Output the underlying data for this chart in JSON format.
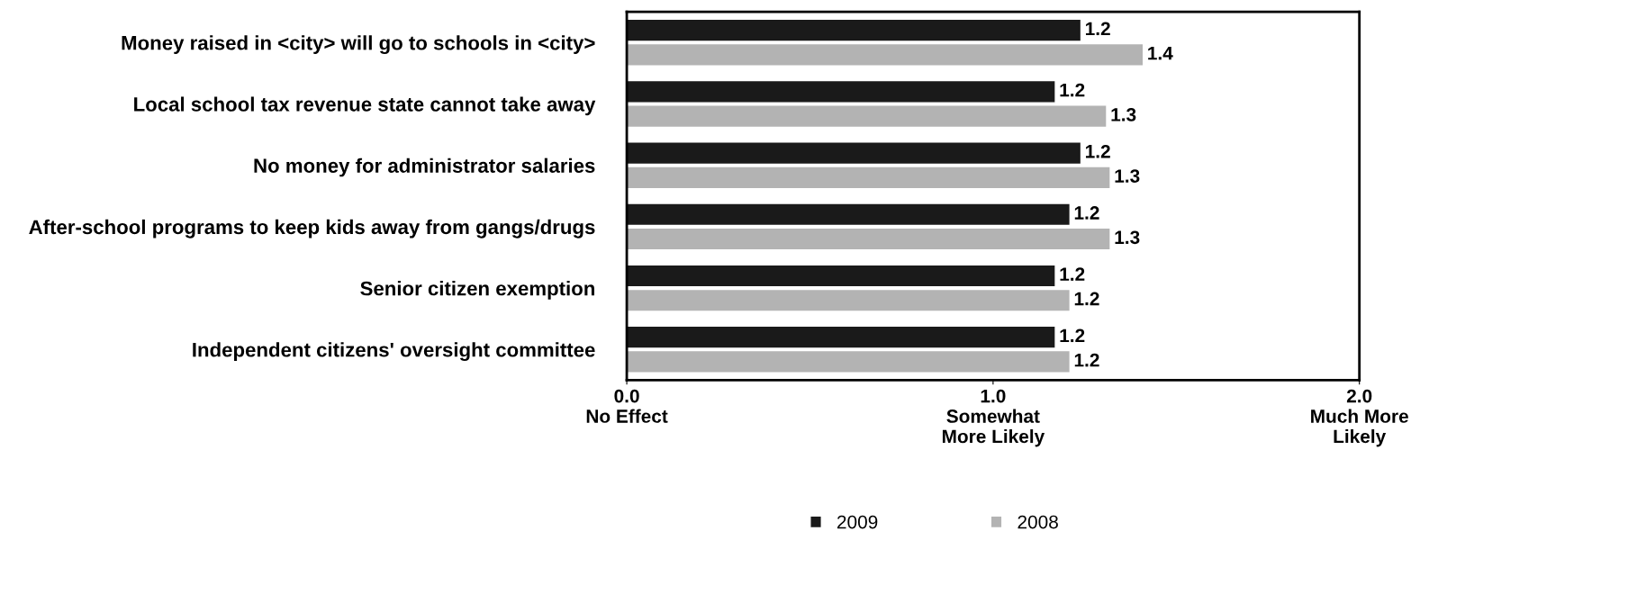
{
  "chart_data": {
    "type": "bar",
    "orientation": "horizontal",
    "categories": [
      "Money raised in <city> will go to schools in <city>",
      "Local school tax revenue state cannot take away",
      "No money for administrator salaries",
      "After-school programs to keep kids away from gangs/drugs",
      "Senior citizen exemption",
      "Independent citizens' oversight committee"
    ],
    "series": [
      {
        "name": "2009",
        "color": "#1a1a1a",
        "values": [
          1.24,
          1.17,
          1.24,
          1.21,
          1.17,
          1.17
        ],
        "value_labels": [
          "1.2",
          "1.2",
          "1.2",
          "1.2",
          "1.2",
          "1.2"
        ]
      },
      {
        "name": "2008",
        "color": "#b3b3b3",
        "values": [
          1.41,
          1.31,
          1.32,
          1.32,
          1.21,
          1.21
        ],
        "value_labels": [
          "1.4",
          "1.3",
          "1.3",
          "1.3",
          "1.2",
          "1.2"
        ]
      }
    ],
    "xlim": [
      0,
      2
    ],
    "xticks": [
      {
        "value": 0,
        "label": "0.0\nNo Effect"
      },
      {
        "value": 1,
        "label": "1.0\nSomewhat\nMore Likely"
      },
      {
        "value": 2,
        "label": "2.0\nMuch More\nLikely"
      }
    ],
    "legend": "bottom"
  }
}
